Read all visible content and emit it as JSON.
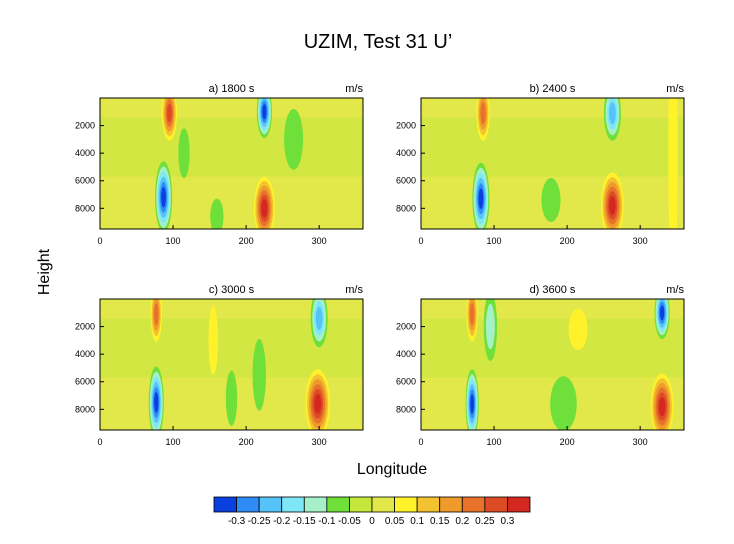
{
  "title": "UZIM, Test 31 U’",
  "xlabel": "Longitude",
  "ylabel": "Height",
  "unit": "m/s",
  "palette": [
    "#0a3fe0",
    "#2f8cf5",
    "#55c3f7",
    "#7fe6f5",
    "#a6f0c9",
    "#6fdf3a",
    "#c5e63a",
    "#e3e84a",
    "#fff22a",
    "#f4c230",
    "#ee9b2b",
    "#e8722a",
    "#dd4a26",
    "#d4271f"
  ],
  "colorbar": {
    "labels": [
      "-0.3",
      "-0.25",
      "-0.2",
      "-0.15",
      "-0.1",
      "-0.05",
      "0",
      "0.05",
      "0.1",
      "0.15",
      "0.2",
      "0.25",
      "0.3"
    ]
  },
  "chart_data": [
    {
      "type": "heatmap",
      "title": "a) 1800 s",
      "unit": "m/s",
      "xlim": [
        0,
        360
      ],
      "ylim": [
        0,
        9500
      ],
      "xticks": [
        0,
        100,
        200,
        300
      ],
      "yticks": [
        2000,
        4000,
        6000,
        8000
      ],
      "features": [
        {
          "lon": 95,
          "z": 1100,
          "value": 0.25,
          "hw": 8,
          "hz": 2000
        },
        {
          "lon": 87,
          "z": 7200,
          "value": -0.3,
          "hw": 9,
          "hz": 2600
        },
        {
          "lon": 225,
          "z": 1000,
          "value": -0.3,
          "hw": 8,
          "hz": 1900
        },
        {
          "lon": 225,
          "z": 8000,
          "value": 0.3,
          "hw": 11,
          "hz": 2300
        },
        {
          "lon": 160,
          "z": 8600,
          "value": -0.05,
          "hw": 7,
          "hz": 1300
        },
        {
          "lon": 115,
          "z": 4000,
          "value": -0.05,
          "hw": 6,
          "hz": 1800
        },
        {
          "lon": 265,
          "z": 3000,
          "value": -0.05,
          "hw": 10,
          "hz": 2200
        }
      ]
    },
    {
      "type": "heatmap",
      "title": "b) 2400 s",
      "unit": "m/s",
      "xlim": [
        0,
        360
      ],
      "ylim": [
        0,
        9500
      ],
      "xticks": [
        0,
        100,
        200,
        300
      ],
      "yticks": [
        2000,
        4000,
        6000,
        8000
      ],
      "features": [
        {
          "lon": 85,
          "z": 1100,
          "value": 0.2,
          "hw": 7,
          "hz": 2000
        },
        {
          "lon": 82,
          "z": 7300,
          "value": -0.3,
          "hw": 9,
          "hz": 2600
        },
        {
          "lon": 262,
          "z": 1100,
          "value": -0.2,
          "hw": 9,
          "hz": 2000
        },
        {
          "lon": 262,
          "z": 7800,
          "value": 0.3,
          "hw": 12,
          "hz": 2400
        },
        {
          "lon": 178,
          "z": 7400,
          "value": -0.05,
          "hw": 10,
          "hz": 1600
        },
        {
          "lon": 345,
          "z": 4000,
          "value": 0.05,
          "hw": 5,
          "hz": 9000
        }
      ]
    },
    {
      "type": "heatmap",
      "title": "c) 3000 s",
      "unit": "m/s",
      "xlim": [
        0,
        360
      ],
      "ylim": [
        0,
        9500
      ],
      "xticks": [
        0,
        100,
        200,
        300
      ],
      "yticks": [
        2000,
        4000,
        6000,
        8000
      ],
      "features": [
        {
          "lon": 77,
          "z": 1100,
          "value": 0.2,
          "hw": 6,
          "hz": 2000
        },
        {
          "lon": 77,
          "z": 7500,
          "value": -0.3,
          "hw": 8,
          "hz": 2600
        },
        {
          "lon": 300,
          "z": 1400,
          "value": -0.2,
          "hw": 9,
          "hz": 2100
        },
        {
          "lon": 298,
          "z": 7600,
          "value": 0.3,
          "hw": 13,
          "hz": 2500
        },
        {
          "lon": 180,
          "z": 7200,
          "value": -0.05,
          "hw": 6,
          "hz": 2000
        },
        {
          "lon": 218,
          "z": 5500,
          "value": -0.05,
          "hw": 7,
          "hz": 2600
        },
        {
          "lon": 155,
          "z": 3000,
          "value": 0.05,
          "hw": 5,
          "hz": 2500
        }
      ]
    },
    {
      "type": "heatmap",
      "title": "d) 3600 s",
      "unit": "m/s",
      "xlim": [
        0,
        360
      ],
      "ylim": [
        0,
        9500
      ],
      "xticks": [
        0,
        100,
        200,
        300
      ],
      "yticks": [
        2000,
        4000,
        6000,
        8000
      ],
      "features": [
        {
          "lon": 70,
          "z": 1100,
          "value": 0.2,
          "hw": 6,
          "hz": 2000
        },
        {
          "lon": 70,
          "z": 7600,
          "value": -0.3,
          "hw": 7,
          "hz": 2500
        },
        {
          "lon": 330,
          "z": 1000,
          "value": -0.3,
          "hw": 8,
          "hz": 1900
        },
        {
          "lon": 330,
          "z": 7800,
          "value": 0.3,
          "hw": 12,
          "hz": 2400
        },
        {
          "lon": 195,
          "z": 7600,
          "value": -0.05,
          "hw": 14,
          "hz": 2000
        },
        {
          "lon": 95,
          "z": 2000,
          "value": -0.1,
          "hw": 7,
          "hz": 2500
        },
        {
          "lon": 215,
          "z": 2200,
          "value": 0.05,
          "hw": 10,
          "hz": 1500
        }
      ]
    }
  ]
}
